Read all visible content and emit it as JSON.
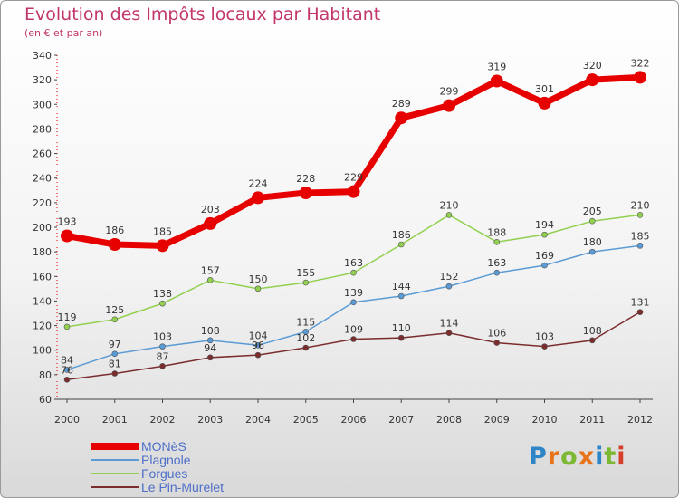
{
  "header": {
    "title": "Evolution des Impôts locaux par Habitant",
    "subtitle": "(en € et par an)"
  },
  "logo": {
    "text": "Proxiti",
    "letter_colors": [
      "#2e86c8",
      "#e8731a",
      "#7db832",
      "#e8731a",
      "#2e86c8",
      "#7db832",
      "#d6402b"
    ]
  },
  "chart_data": {
    "type": "line",
    "x": [
      "2000",
      "2001",
      "2002",
      "2003",
      "2004",
      "2005",
      "2006",
      "2007",
      "2008",
      "2009",
      "2010",
      "2011",
      "2012"
    ],
    "ylim": [
      60,
      340
    ],
    "yticks": [
      60,
      80,
      100,
      120,
      140,
      160,
      180,
      200,
      220,
      240,
      260,
      280,
      300,
      320,
      340
    ],
    "grid": false,
    "legend_position": "bottom-left",
    "series": [
      {
        "name": "MONèS",
        "color": "#e60000",
        "values": [
          193,
          186,
          185,
          203,
          224,
          228,
          229,
          289,
          299,
          319,
          301,
          320,
          322
        ],
        "labels": [
          "193",
          "186",
          "185",
          "203",
          "224",
          "228",
          "229",
          "289",
          "299",
          "319",
          "301",
          "320",
          "322"
        ]
      },
      {
        "name": "Plagnole",
        "color": "#5b9bd5",
        "values": [
          84,
          97,
          103,
          108,
          104,
          115,
          139,
          144,
          152,
          163,
          169,
          180,
          185
        ],
        "labels": [
          "84",
          "97",
          "103",
          "108",
          "104",
          "115",
          "139",
          "144",
          "152",
          "163",
          "169",
          "180",
          "185"
        ]
      },
      {
        "name": "Forgues",
        "color": "#92d050",
        "values": [
          119,
          125,
          138,
          157,
          150,
          155,
          163,
          186,
          210,
          188,
          194,
          205,
          210
        ],
        "labels": [
          "119",
          "125",
          "138",
          "157",
          "150",
          "155",
          "163",
          "186",
          "210",
          "188",
          "194",
          "205",
          "210"
        ]
      },
      {
        "name": "Le Pin-Murelet",
        "color": "#7b2c2c",
        "values": [
          76,
          81,
          87,
          94,
          96,
          102,
          109,
          110,
          114,
          106,
          103,
          108,
          131
        ],
        "labels": [
          "76",
          "81",
          "87",
          "94",
          "96",
          "102",
          "109",
          "110",
          "114",
          "106",
          "103",
          "108",
          "131"
        ]
      }
    ]
  }
}
